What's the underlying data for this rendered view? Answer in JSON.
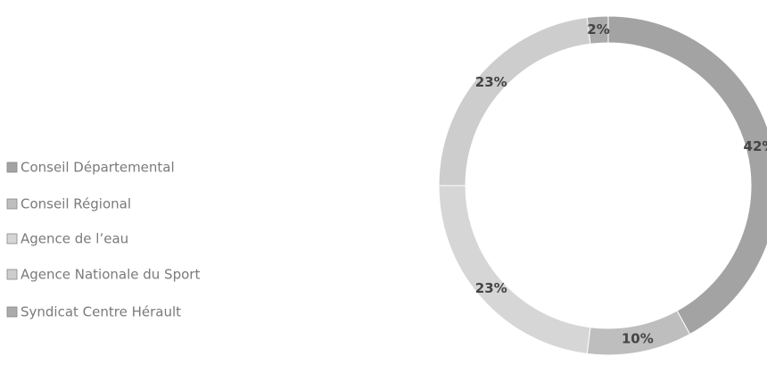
{
  "chart_data": {
    "type": "donut",
    "categories": [
      "Conseil Départemental",
      "Conseil Régional",
      "Agence de l’eau",
      "Agence Nationale du Sport",
      "Syndicat Centre Hérault"
    ],
    "values": [
      42,
      10,
      23,
      23,
      2
    ],
    "value_labels": [
      "42%",
      "10%",
      "23%",
      "23%",
      "2%"
    ],
    "colors": [
      "#a3a3a3",
      "#bebebe",
      "#d6d6d6",
      "#cdcdcd",
      "#ababab"
    ],
    "legend": "left"
  }
}
